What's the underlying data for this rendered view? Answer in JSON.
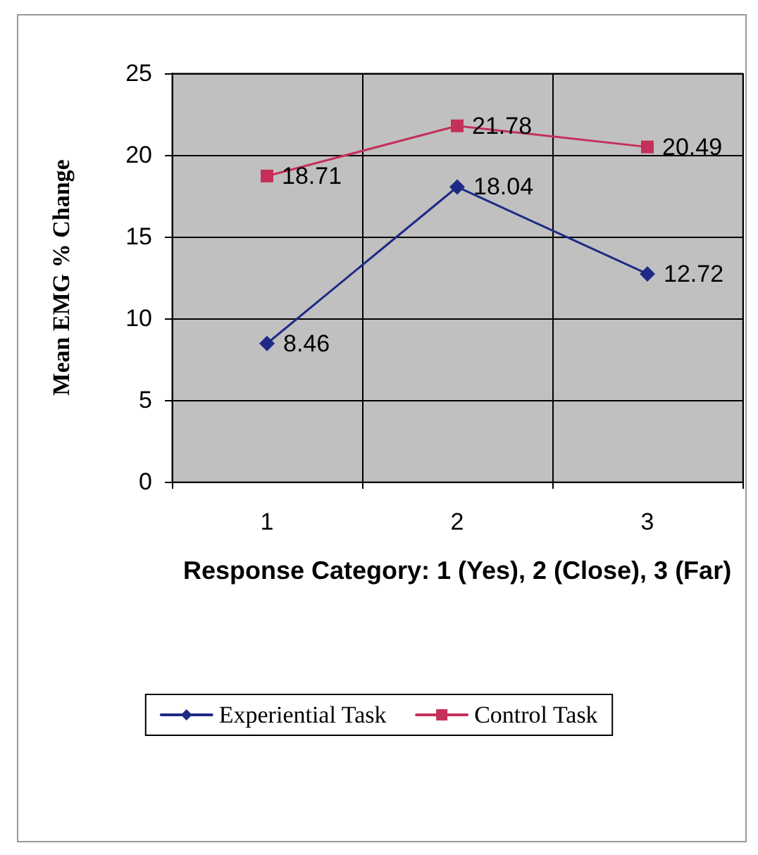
{
  "chart_data": {
    "type": "line",
    "xlabel": "Response Category: 1 (Yes), 2 (Close), 3 (Far)",
    "ylabel": "Mean EMG % Change",
    "categories": [
      "1",
      "2",
      "3"
    ],
    "series": [
      {
        "name": "Experiential Task",
        "color": "#1f2a85",
        "marker": "diamond",
        "values": [
          8.46,
          18.04,
          12.72
        ]
      },
      {
        "name": "Control Task",
        "color": "#c4305a",
        "marker": "square",
        "values": [
          18.71,
          21.78,
          20.49
        ]
      }
    ],
    "ylim": [
      0,
      25
    ],
    "yticks": [
      0,
      5,
      10,
      15,
      20,
      25
    ],
    "grid": true,
    "legend": "bottom",
    "data_labels": true,
    "line_style": "solid"
  }
}
